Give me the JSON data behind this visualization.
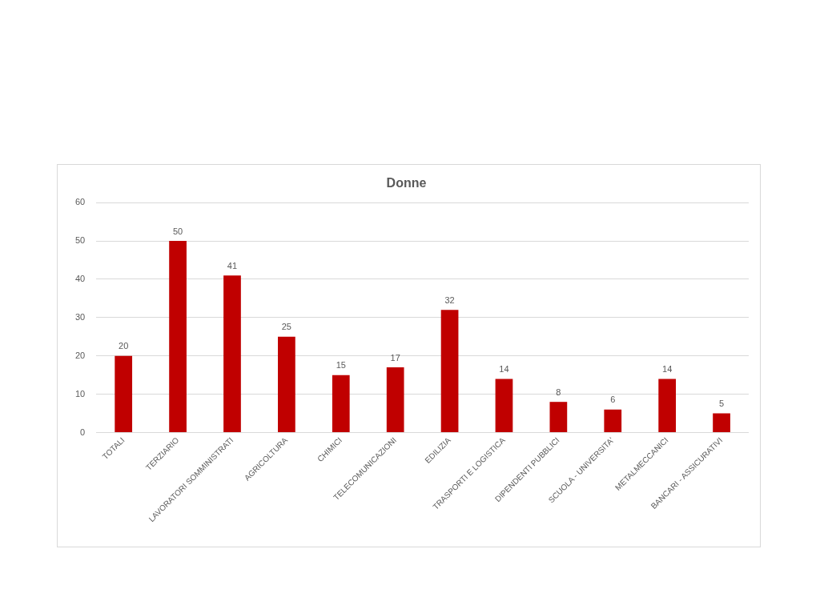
{
  "chart_data": {
    "type": "bar",
    "title": "Donne",
    "categories": [
      "TOTALI",
      "TERZIARIO",
      "LAVORATORI SOMMINISTRATI",
      "AGRICOLTURA",
      "CHIMICI",
      "TELECOMUNICAZIONI",
      "EDILIZIA",
      "TRASPORTI E LOGISTICA",
      "DIPENDENTI PUBBLICI",
      "SCUOLA - UNIVERSITA'",
      "METALMECCANICI",
      "BANCARI - ASSICURATIVI"
    ],
    "values": [
      20,
      50,
      41,
      25,
      15,
      17,
      32,
      14,
      8,
      6,
      14,
      5
    ],
    "color": "#c00000",
    "ylim": [
      0,
      60
    ],
    "yticks": [
      0,
      10,
      20,
      30,
      40,
      50,
      60
    ],
    "grid": "y",
    "legend": false,
    "data_labels": true
  }
}
